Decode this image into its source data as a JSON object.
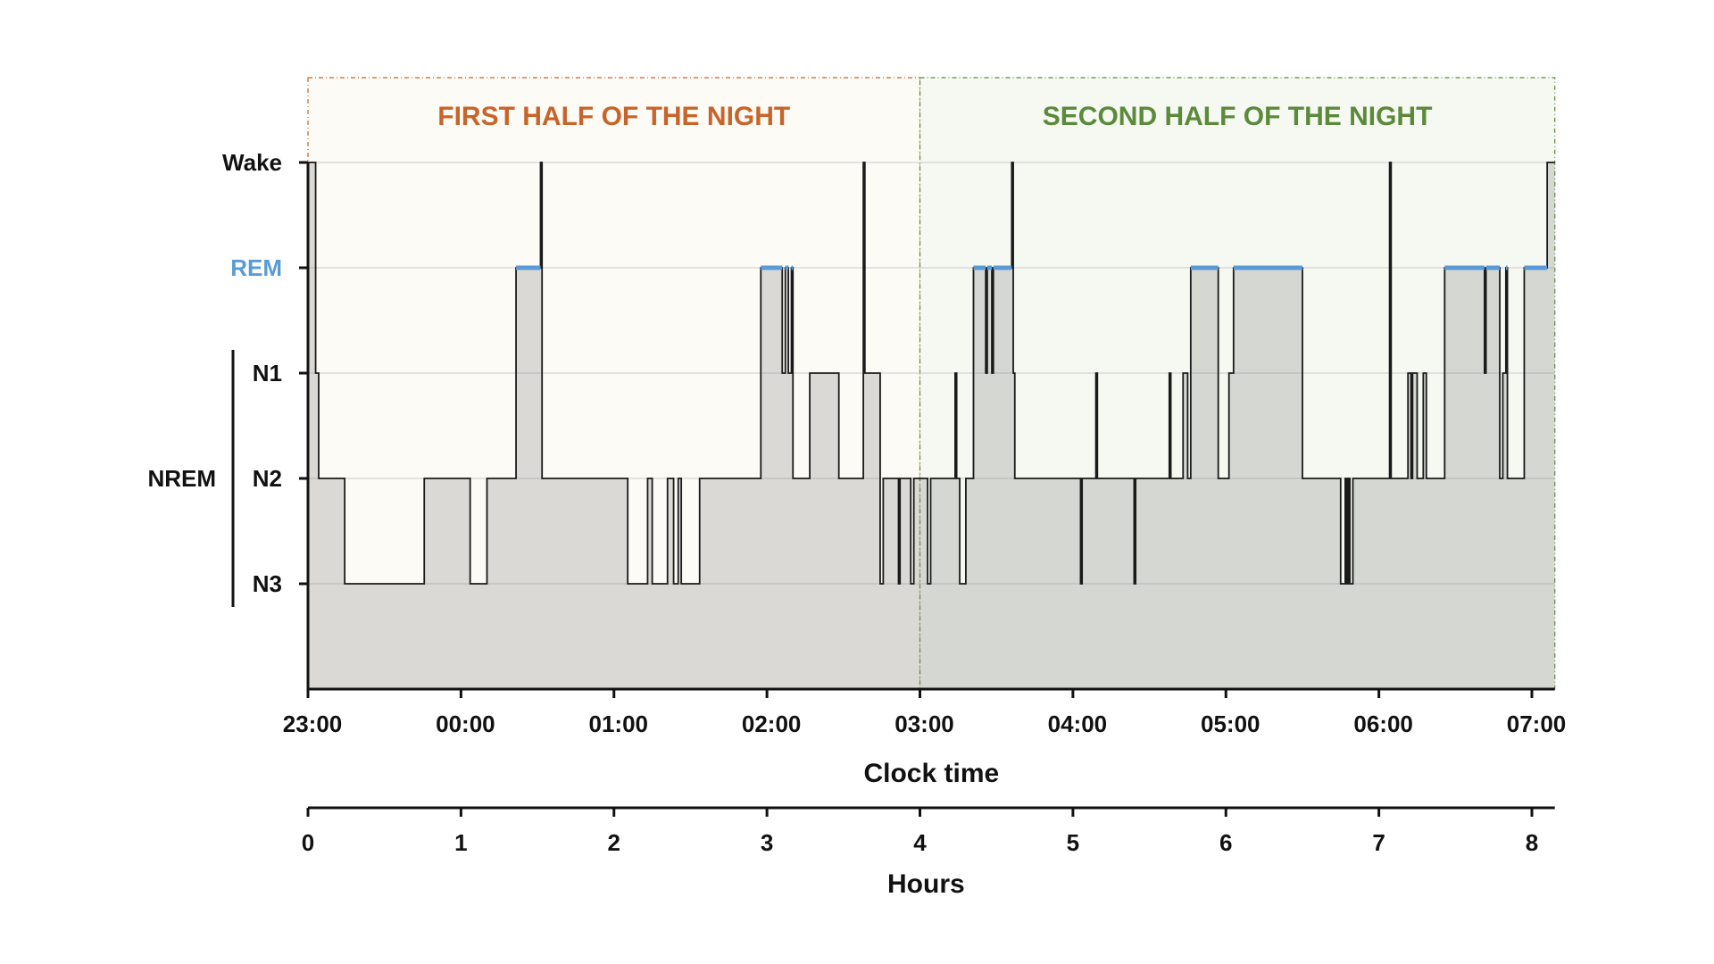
{
  "chart_data": {
    "type": "step-line",
    "title": "",
    "regions": [
      {
        "label": "FIRST HALF OF THE NIGHT",
        "start_hour": 0,
        "end_hour": 4,
        "color": "#c8642a",
        "fill": "#fdfbf6"
      },
      {
        "label": "SECOND HALF OF THE NIGHT",
        "start_hour": 4,
        "end_hour": 8.15,
        "color": "#5b8a3a",
        "fill": "#f6f8f2"
      }
    ],
    "stages": [
      {
        "label": "Wake",
        "level": 4,
        "color": "#111111"
      },
      {
        "label": "REM",
        "level": 3,
        "color": "#5b9bd5"
      },
      {
        "label": "N1",
        "level": 2,
        "color": "#111111"
      },
      {
        "label": "N2",
        "level": 1,
        "color": "#111111"
      },
      {
        "label": "N3",
        "level": 0,
        "color": "#111111"
      }
    ],
    "group_label": "NREM",
    "x_clock": {
      "title": "Clock time",
      "ticks": [
        {
          "hour": 0,
          "label": "23:00"
        },
        {
          "hour": 1,
          "label": "00:00"
        },
        {
          "hour": 2,
          "label": "01:00"
        },
        {
          "hour": 3,
          "label": "02:00"
        },
        {
          "hour": 4,
          "label": "03:00"
        },
        {
          "hour": 5,
          "label": "04:00"
        },
        {
          "hour": 6,
          "label": "05:00"
        },
        {
          "hour": 7,
          "label": "06:00"
        },
        {
          "hour": 8,
          "label": "07:00"
        }
      ]
    },
    "x_hours": {
      "title": "Hours",
      "ticks": [
        {
          "hour": 0,
          "label": "0"
        },
        {
          "hour": 1,
          "label": "1"
        },
        {
          "hour": 2,
          "label": "2"
        },
        {
          "hour": 3,
          "label": "3"
        },
        {
          "hour": 4,
          "label": "4"
        },
        {
          "hour": 5,
          "label": "5"
        },
        {
          "hour": 6,
          "label": "6"
        },
        {
          "hour": 7,
          "label": "7"
        },
        {
          "hour": 8,
          "label": "8"
        }
      ]
    },
    "xlim": [
      0,
      8.15
    ],
    "hypnogram": [
      [
        0.0,
        4
      ],
      [
        0.05,
        2
      ],
      [
        0.07,
        1
      ],
      [
        0.24,
        0
      ],
      [
        0.76,
        1
      ],
      [
        1.06,
        0
      ],
      [
        1.17,
        1
      ],
      [
        1.36,
        3
      ],
      [
        1.52,
        4
      ],
      [
        1.53,
        1
      ],
      [
        2.09,
        0
      ],
      [
        2.22,
        1
      ],
      [
        2.25,
        0
      ],
      [
        2.35,
        1
      ],
      [
        2.39,
        0
      ],
      [
        2.42,
        1
      ],
      [
        2.44,
        0
      ],
      [
        2.56,
        1
      ],
      [
        2.96,
        3
      ],
      [
        3.1,
        2
      ],
      [
        3.12,
        3
      ],
      [
        3.14,
        2
      ],
      [
        3.16,
        3
      ],
      [
        3.17,
        1
      ],
      [
        3.28,
        2
      ],
      [
        3.47,
        1
      ],
      [
        3.63,
        4
      ],
      [
        3.64,
        2
      ],
      [
        3.74,
        0
      ],
      [
        3.76,
        1
      ],
      [
        3.86,
        0
      ],
      [
        3.87,
        1
      ],
      [
        3.94,
        0
      ],
      [
        3.96,
        1
      ],
      [
        4.05,
        0
      ],
      [
        4.07,
        1
      ],
      [
        4.23,
        2
      ],
      [
        4.24,
        1
      ],
      [
        4.26,
        0
      ],
      [
        4.3,
        1
      ],
      [
        4.35,
        3
      ],
      [
        4.43,
        2
      ],
      [
        4.44,
        3
      ],
      [
        4.47,
        2
      ],
      [
        4.48,
        3
      ],
      [
        4.6,
        4
      ],
      [
        4.61,
        2
      ],
      [
        4.62,
        1
      ],
      [
        5.05,
        0
      ],
      [
        5.06,
        1
      ],
      [
        5.15,
        2
      ],
      [
        5.16,
        1
      ],
      [
        5.4,
        0
      ],
      [
        5.41,
        1
      ],
      [
        5.63,
        2
      ],
      [
        5.64,
        1
      ],
      [
        5.72,
        2
      ],
      [
        5.75,
        1
      ],
      [
        5.77,
        3
      ],
      [
        5.95,
        1
      ],
      [
        6.02,
        2
      ],
      [
        6.05,
        3
      ],
      [
        6.5,
        1
      ],
      [
        6.75,
        0
      ],
      [
        6.78,
        1
      ],
      [
        6.79,
        0
      ],
      [
        6.8,
        1
      ],
      [
        6.81,
        0
      ],
      [
        6.83,
        1
      ],
      [
        7.07,
        4
      ],
      [
        7.08,
        1
      ],
      [
        7.19,
        2
      ],
      [
        7.21,
        1
      ],
      [
        7.22,
        2
      ],
      [
        7.25,
        1
      ],
      [
        7.29,
        2
      ],
      [
        7.31,
        1
      ],
      [
        7.43,
        3
      ],
      [
        7.69,
        2
      ],
      [
        7.7,
        3
      ],
      [
        7.79,
        1
      ],
      [
        7.81,
        2
      ],
      [
        7.83,
        3
      ],
      [
        7.84,
        1
      ],
      [
        7.95,
        3
      ],
      [
        8.1,
        4
      ],
      [
        8.15,
        4
      ]
    ]
  }
}
